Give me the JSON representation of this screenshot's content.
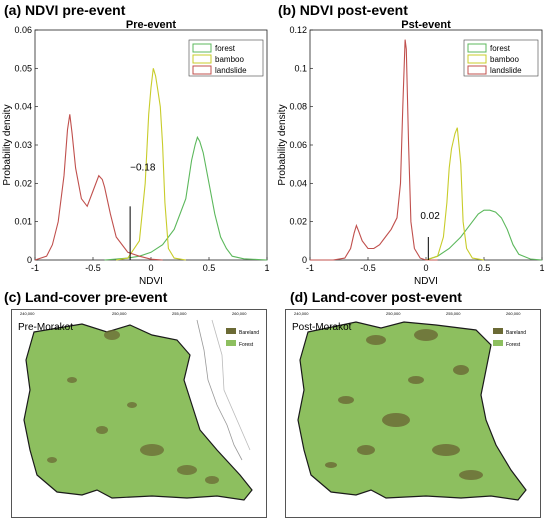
{
  "panels": {
    "a": {
      "label": "(a) NDVI pre-event"
    },
    "b": {
      "label": "(b) NDVI post-event"
    },
    "c": {
      "label": "(c) Land-cover pre-event"
    },
    "d": {
      "label": "(d) Land-cover post-event"
    }
  },
  "colors": {
    "forest": "#5cb85c",
    "bamboo": "#c8cc2a",
    "landslide": "#c0504d",
    "bareland": "#6b6a35",
    "forest_map": "#8dbf5f"
  },
  "chart_data": [
    {
      "type": "line",
      "title": "Pre-event",
      "xlabel": "NDVI",
      "ylabel": "Probability density",
      "xlim": [
        -1,
        1
      ],
      "ylim": [
        0,
        0.06
      ],
      "xticks": [
        "-1",
        "-0.5",
        "0",
        "0.5",
        "1"
      ],
      "yticks": [
        "0",
        "0.01",
        "0.02",
        "0.03",
        "0.04",
        "0.05",
        "0.06"
      ],
      "legend": {
        "position": "top-right",
        "entries": [
          "forest",
          "bamboo",
          "landslide"
        ]
      },
      "annotation": {
        "text": "−0.18",
        "x": -0.18
      },
      "series": [
        {
          "name": "forest",
          "x": [
            -0.4,
            -0.2,
            -0.1,
            0.0,
            0.1,
            0.2,
            0.3,
            0.35,
            0.38,
            0.4,
            0.42,
            0.45,
            0.5,
            0.55,
            0.6,
            0.65,
            0.7,
            0.8,
            1.0
          ],
          "y": [
            0,
            0.0005,
            0.001,
            0.002,
            0.004,
            0.008,
            0.016,
            0.026,
            0.03,
            0.032,
            0.031,
            0.028,
            0.02,
            0.012,
            0.006,
            0.003,
            0.001,
            0.0003,
            0
          ]
        },
        {
          "name": "bamboo",
          "x": [
            -0.3,
            -0.2,
            -0.1,
            -0.05,
            -0.02,
            0.0,
            0.02,
            0.04,
            0.06,
            0.08,
            0.1,
            0.12,
            0.15,
            0.2,
            0.3
          ],
          "y": [
            0,
            0.0005,
            0.005,
            0.02,
            0.038,
            0.045,
            0.05,
            0.048,
            0.044,
            0.04,
            0.03,
            0.015,
            0.003,
            0.0005,
            0
          ]
        },
        {
          "name": "landslide",
          "x": [
            -1.0,
            -0.9,
            -0.85,
            -0.8,
            -0.75,
            -0.72,
            -0.7,
            -0.68,
            -0.65,
            -0.6,
            -0.55,
            -0.5,
            -0.45,
            -0.42,
            -0.4,
            -0.35,
            -0.3,
            -0.2,
            -0.1,
            0.0,
            0.1
          ],
          "y": [
            0,
            0.001,
            0.004,
            0.01,
            0.022,
            0.034,
            0.038,
            0.033,
            0.024,
            0.016,
            0.014,
            0.018,
            0.022,
            0.021,
            0.019,
            0.012,
            0.006,
            0.002,
            0.001,
            0.0002,
            0
          ]
        }
      ],
      "marker_line": {
        "x": -0.18,
        "y_top": 0.014
      }
    },
    {
      "type": "line",
      "title": "Pst-event",
      "xlabel": "NDVI",
      "ylabel": "Probability density",
      "xlim": [
        -1,
        1
      ],
      "ylim": [
        0,
        0.12
      ],
      "xticks": [
        "-1",
        "-0.5",
        "0",
        "0.5",
        "1"
      ],
      "yticks": [
        "0",
        "0.02",
        "0.04",
        "0.06",
        "0.08",
        "0.1",
        "0.12"
      ],
      "legend": {
        "position": "top-right",
        "entries": [
          "forest",
          "bamboo",
          "landslide"
        ]
      },
      "annotation": {
        "text": "0.02",
        "x": 0.02
      },
      "series": [
        {
          "name": "forest",
          "x": [
            0.0,
            0.1,
            0.2,
            0.3,
            0.35,
            0.4,
            0.45,
            0.5,
            0.55,
            0.6,
            0.65,
            0.7,
            0.75,
            0.8,
            0.9,
            1.0
          ],
          "y": [
            0,
            0.002,
            0.006,
            0.012,
            0.016,
            0.02,
            0.024,
            0.026,
            0.026,
            0.025,
            0.022,
            0.016,
            0.008,
            0.003,
            0.0005,
            0
          ]
        },
        {
          "name": "bamboo",
          "x": [
            0.0,
            0.1,
            0.15,
            0.18,
            0.2,
            0.22,
            0.25,
            0.27,
            0.3,
            0.32,
            0.35,
            0.4,
            0.5
          ],
          "y": [
            0,
            0.002,
            0.012,
            0.03,
            0.048,
            0.058,
            0.066,
            0.069,
            0.05,
            0.02,
            0.006,
            0.001,
            0
          ]
        },
        {
          "name": "landslide",
          "x": [
            -1.0,
            -0.8,
            -0.7,
            -0.65,
            -0.62,
            -0.6,
            -0.58,
            -0.55,
            -0.5,
            -0.45,
            -0.4,
            -0.35,
            -0.3,
            -0.25,
            -0.22,
            -0.2,
            -0.18,
            -0.17,
            -0.15,
            -0.13,
            -0.1,
            -0.05,
            0.0,
            0.1
          ],
          "y": [
            0,
            0,
            0.001,
            0.006,
            0.014,
            0.018,
            0.015,
            0.01,
            0.006,
            0.006,
            0.008,
            0.012,
            0.016,
            0.022,
            0.04,
            0.08,
            0.115,
            0.11,
            0.06,
            0.02,
            0.006,
            0.001,
            0,
            0
          ]
        }
      ],
      "marker_line": {
        "x": 0.02,
        "y_top": 0.012
      }
    }
  ],
  "maps": {
    "pre": {
      "label": "Pre-Morakot",
      "legend": [
        "Bareland",
        "Forest"
      ],
      "top_ticks": [
        "240,000",
        "250,000",
        "255,000",
        "260,000"
      ],
      "side_ticks": [
        "2,555,000",
        "2,550,000",
        "2,545,000",
        "2,540,000"
      ]
    },
    "post": {
      "label": "Post-Morakot",
      "legend": [
        "Bareland",
        "Forest"
      ],
      "top_ticks": [
        "240,000",
        "250,000",
        "255,000",
        "260,000"
      ],
      "side_ticks": [
        "2,555,000",
        "2,550,000",
        "2,545,000",
        "2,540,000"
      ]
    }
  }
}
